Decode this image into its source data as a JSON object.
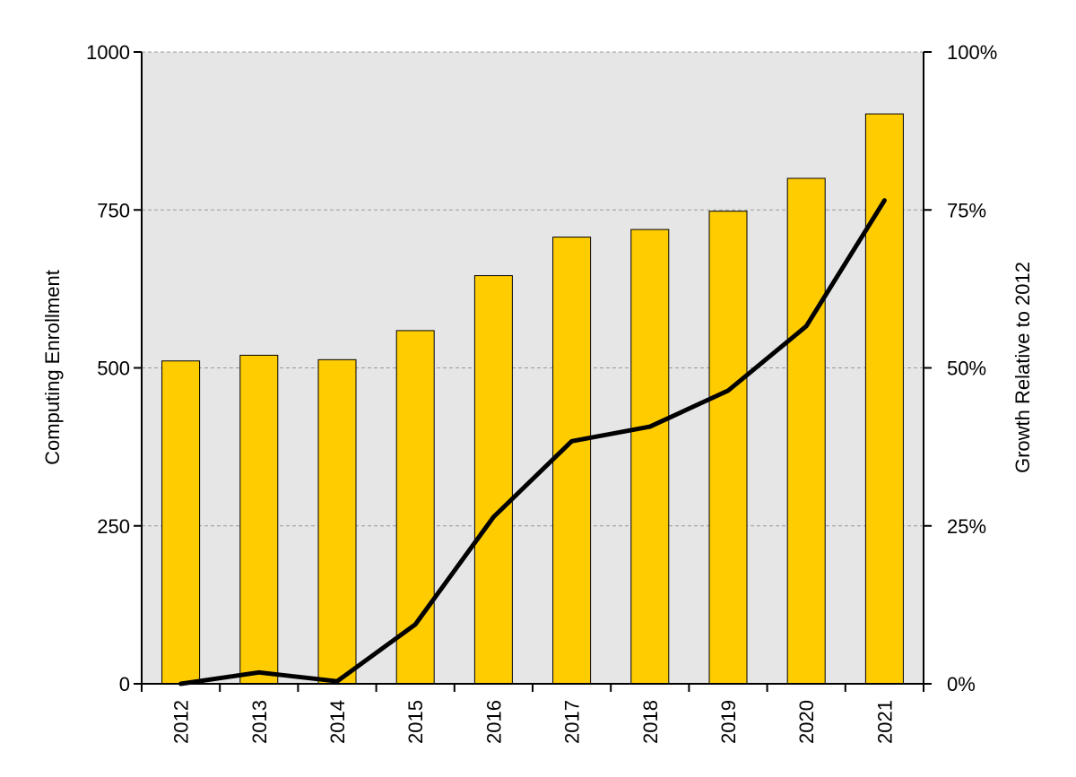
{
  "chart_data": {
    "type": "bar",
    "categories": [
      "2012",
      "2013",
      "2014",
      "2015",
      "2016",
      "2017",
      "2018",
      "2019",
      "2020",
      "2021"
    ],
    "series": [
      {
        "type": "bar",
        "axis": "left",
        "values": [
          511,
          520,
          513,
          559,
          646,
          707,
          719,
          748,
          800,
          902
        ],
        "color": "#FFCC00"
      },
      {
        "type": "line",
        "axis": "right",
        "values": [
          0,
          1.8,
          0.4,
          9.4,
          26.4,
          38.4,
          40.7,
          46.4,
          56.6,
          76.5
        ],
        "color": "#000000"
      }
    ],
    "ylabel": "Computing Enrollment",
    "y2label": "Growth Relative to 2012",
    "ylim": [
      0,
      1000
    ],
    "y2lim": [
      0,
      100
    ],
    "yticks": [
      "0",
      "250",
      "500",
      "750",
      "1000"
    ],
    "y2ticks": [
      "0%",
      "25%",
      "50%",
      "75%",
      "100%"
    ],
    "grid": true,
    "plot_background": "#E6E6E6",
    "legend": "none"
  }
}
